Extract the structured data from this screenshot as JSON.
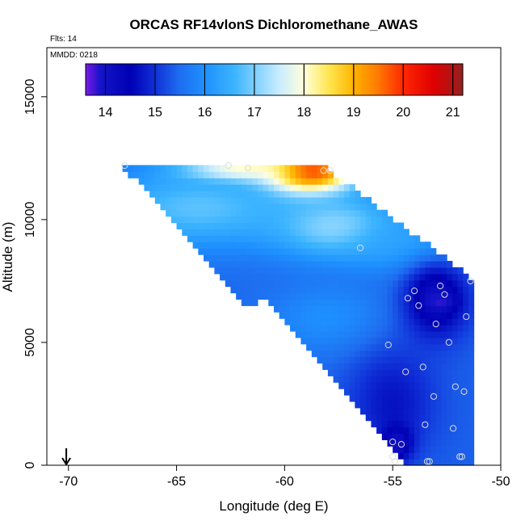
{
  "chart_data": {
    "type": "heatmap",
    "title": "ORCAS RF14vlonS Dichloromethane_AWAS",
    "flights_note": "Flts: 14",
    "date_note": "MMDD: 0218",
    "xlabel": "Longitude (deg E)",
    "ylabel": "Altitude (m)",
    "xlim": [
      -71,
      -50
    ],
    "ylim": [
      0,
      17000
    ],
    "xticks": [
      -70,
      -65,
      -60,
      -55,
      -50
    ],
    "yticks": [
      0,
      5000,
      10000,
      15000
    ],
    "colorbar": {
      "range": [
        13.6,
        21.2
      ],
      "ticks": [
        14,
        15,
        16,
        17,
        18,
        19,
        20,
        21
      ],
      "stops": [
        {
          "v": 13.6,
          "c": "#7a1ae6"
        },
        {
          "v": 13.9,
          "c": "#1414c8"
        },
        {
          "v": 14.5,
          "c": "#0000b4"
        },
        {
          "v": 15.0,
          "c": "#1030d8"
        },
        {
          "v": 15.5,
          "c": "#1e6ef0"
        },
        {
          "v": 16.0,
          "c": "#1e90ff"
        },
        {
          "v": 16.6,
          "c": "#3cb4ff"
        },
        {
          "v": 17.0,
          "c": "#7ccfff"
        },
        {
          "v": 17.5,
          "c": "#c8ecff"
        },
        {
          "v": 18.0,
          "c": "#ffffdc"
        },
        {
          "v": 18.5,
          "c": "#ffe650"
        },
        {
          "v": 19.0,
          "c": "#ffb400"
        },
        {
          "v": 19.5,
          "c": "#ff7800"
        },
        {
          "v": 20.0,
          "c": "#ff2800"
        },
        {
          "v": 20.6,
          "c": "#e00000"
        },
        {
          "v": 21.2,
          "c": "#962020"
        }
      ]
    },
    "data_region": [
      [
        -67.5,
        12200
      ],
      [
        -58.2,
        12200
      ],
      [
        -51.3,
        7600
      ],
      [
        -51.3,
        0
      ],
      [
        -54.5,
        0
      ],
      [
        -60.8,
        6800
      ],
      [
        -61.8,
        6500
      ]
    ],
    "field_features": {
      "background": 15.4,
      "lobes": [
        {
          "lon": -59.0,
          "alt": 11900,
          "dlon": 2.2,
          "dalt": 900,
          "value": 21.0
        },
        {
          "lon": -62.0,
          "alt": 12000,
          "dlon": 2.8,
          "dalt": 450,
          "value": 18.8
        },
        {
          "lon": -64.0,
          "alt": 10500,
          "dlon": 5.0,
          "dalt": 1700,
          "value": 16.8
        },
        {
          "lon": -57.5,
          "alt": 9700,
          "dlon": 3.0,
          "dalt": 1300,
          "value": 17.2
        },
        {
          "lon": -54.0,
          "alt": 9000,
          "dlon": 3.0,
          "dalt": 1200,
          "value": 16.4
        },
        {
          "lon": -58.0,
          "alt": 6000,
          "dlon": 3.0,
          "dalt": 1500,
          "value": 16.0
        },
        {
          "lon": -53.0,
          "alt": 6800,
          "dlon": 1.5,
          "dalt": 1600,
          "value": 14.1
        },
        {
          "lon": -52.8,
          "alt": 6700,
          "dlon": 0.6,
          "dalt": 300,
          "value": 13.8
        },
        {
          "lon": -55.0,
          "alt": 2600,
          "dlon": 2.0,
          "dalt": 2200,
          "value": 14.7
        },
        {
          "lon": -54.8,
          "alt": 900,
          "dlon": 0.7,
          "dalt": 700,
          "value": 14.0
        }
      ]
    },
    "samples": [
      {
        "lon": -67.4,
        "alt": 12200
      },
      {
        "lon": -62.6,
        "alt": 12200
      },
      {
        "lon": -61.7,
        "alt": 12100
      },
      {
        "lon": -58.2,
        "alt": 12000
      },
      {
        "lon": -57.9,
        "alt": 12000
      },
      {
        "lon": -56.5,
        "alt": 8850
      },
      {
        "lon": -51.4,
        "alt": 7500
      },
      {
        "lon": -52.8,
        "alt": 7300
      },
      {
        "lon": -54.0,
        "alt": 7100
      },
      {
        "lon": -52.6,
        "alt": 6950
      },
      {
        "lon": -54.3,
        "alt": 6800
      },
      {
        "lon": -53.8,
        "alt": 6500
      },
      {
        "lon": -51.6,
        "alt": 6050
      },
      {
        "lon": -53.0,
        "alt": 5750
      },
      {
        "lon": -52.4,
        "alt": 5000
      },
      {
        "lon": -55.2,
        "alt": 4900
      },
      {
        "lon": -53.6,
        "alt": 4000
      },
      {
        "lon": -54.4,
        "alt": 3800
      },
      {
        "lon": -52.1,
        "alt": 3200
      },
      {
        "lon": -51.7,
        "alt": 3000
      },
      {
        "lon": -53.1,
        "alt": 2800
      },
      {
        "lon": -53.5,
        "alt": 1650
      },
      {
        "lon": -52.2,
        "alt": 1500
      },
      {
        "lon": -55.0,
        "alt": 950
      },
      {
        "lon": -54.6,
        "alt": 850
      },
      {
        "lon": -55.0,
        "alt": 350
      },
      {
        "lon": -51.9,
        "alt": 350
      },
      {
        "lon": -51.8,
        "alt": 350
      },
      {
        "lon": -54.9,
        "alt": 150
      },
      {
        "lon": -53.4,
        "alt": 150
      },
      {
        "lon": -53.3,
        "alt": 150
      }
    ],
    "marker": {
      "lon": -70.1,
      "alt": 0,
      "symbol": "down-arrow"
    }
  }
}
